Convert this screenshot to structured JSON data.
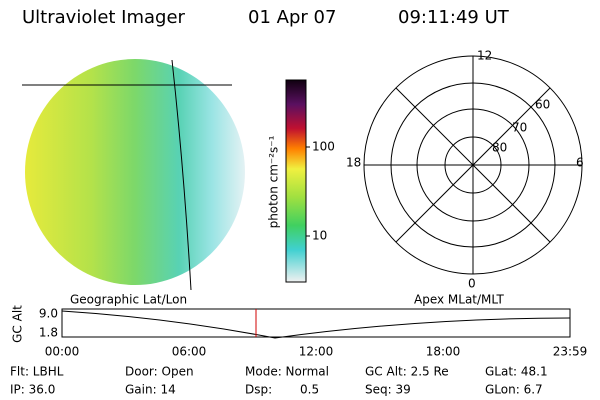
{
  "header": {
    "instrument": "Ultraviolet Imager",
    "date": "01 Apr 07",
    "time": "09:11:49 UT"
  },
  "colorbar": {
    "label": "photon cm⁻²s⁻¹",
    "ticks": [
      "100",
      "10"
    ]
  },
  "polar": {
    "mlt_labels": [
      "12",
      "18",
      "6",
      "0"
    ],
    "lat_labels": [
      "60",
      "70",
      "80"
    ]
  },
  "timeline": {
    "left_title": "Geographic Lat/Lon",
    "right_title": "Apex MLat/MLT",
    "axis_label": "GC Alt",
    "y_labels": [
      "9.0",
      "1.8"
    ],
    "x_labels": [
      "00:00",
      "06:00",
      "12:00",
      "18:00",
      "23:59"
    ]
  },
  "footer": {
    "rows": [
      [
        "Flt: LBHL",
        "Door: Open",
        "Mode: Normal",
        "GC Alt: 2.5 Re",
        "GLat: 48.1"
      ],
      [
        "IP: 36.0",
        "Gain: 14",
        "Dsp:",
        "Seq: 39",
        "GLon: 6.7"
      ]
    ],
    "dsp_value": "0.5"
  }
}
